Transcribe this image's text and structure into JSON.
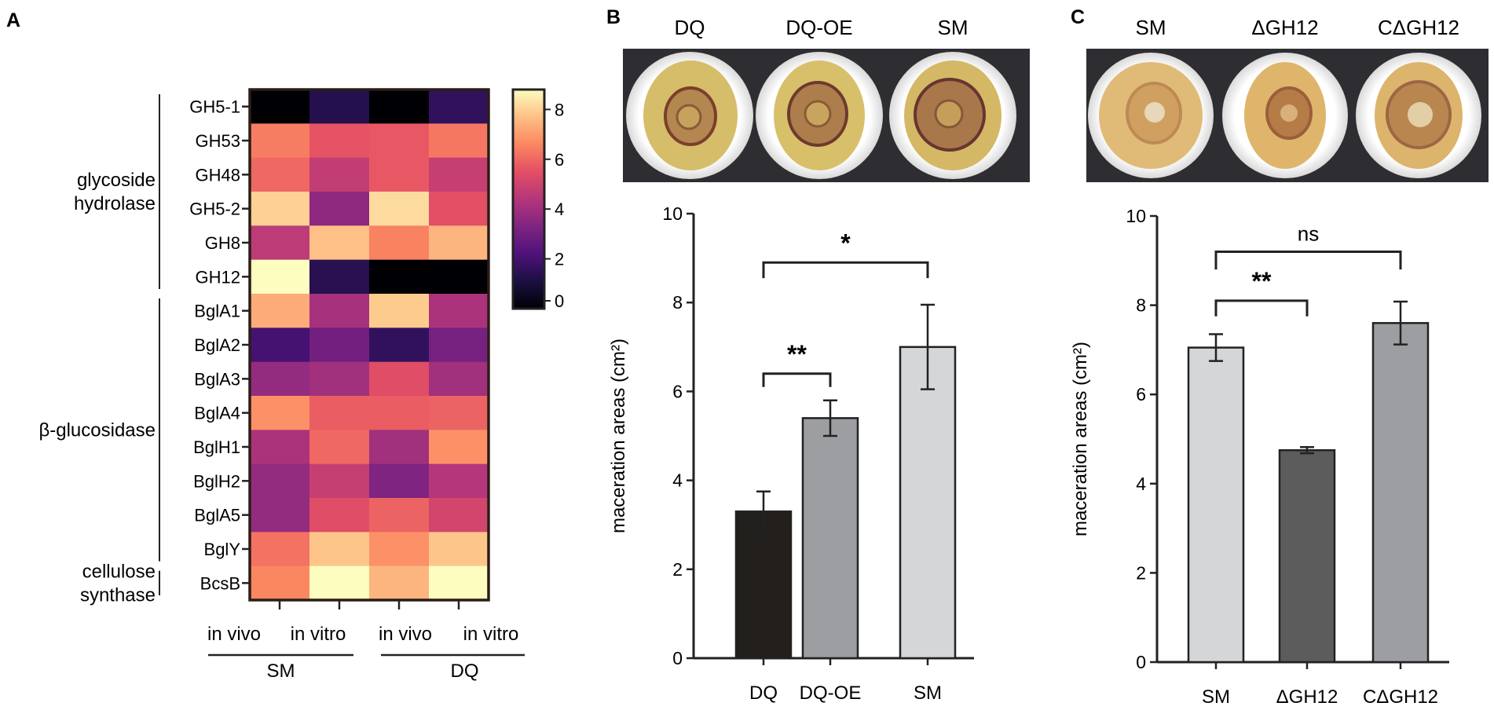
{
  "panels": {
    "A": {
      "label": "A",
      "chart_data": {
        "type": "heatmap",
        "rows": [
          "GH5-1",
          "GH53",
          "GH48",
          "GH5-2",
          "GH8",
          "GH12",
          "BglA1",
          "BglA2",
          "BglA3",
          "BglA4",
          "BglH1",
          "BglH2",
          "BglA5",
          "BglY",
          "BcsB"
        ],
        "columns": [
          "in vivo",
          "in vitro",
          "in vivo",
          "in vitro"
        ],
        "column_groups": [
          {
            "name": "SM",
            "span": [
              0,
              1
            ]
          },
          {
            "name": "DQ",
            "span": [
              2,
              3
            ]
          }
        ],
        "row_groups": [
          {
            "name_lines": [
              "glycoside",
              "hydrolase"
            ],
            "span": [
              0,
              5
            ]
          },
          {
            "name_lines": [
              "β-glucosidase"
            ],
            "span": [
              6,
              13
            ]
          },
          {
            "name_lines": [
              "cellulose",
              "synthase"
            ],
            "span": [
              14,
              14
            ]
          }
        ],
        "values": [
          [
            0.0,
            1.3,
            0.0,
            1.6
          ],
          [
            6.4,
            5.6,
            5.7,
            6.3
          ],
          [
            6.0,
            4.7,
            5.7,
            4.8
          ],
          [
            8.0,
            3.6,
            8.2,
            5.5
          ],
          [
            4.6,
            7.7,
            6.5,
            7.5
          ],
          [
            8.8,
            1.4,
            0.0,
            0.0
          ],
          [
            7.3,
            4.1,
            7.9,
            4.2
          ],
          [
            2.0,
            3.0,
            1.6,
            3.1
          ],
          [
            3.7,
            4.0,
            5.4,
            4.0
          ],
          [
            6.8,
            5.8,
            5.8,
            5.9
          ],
          [
            4.2,
            6.0,
            4.0,
            6.8
          ],
          [
            3.7,
            4.8,
            3.3,
            4.4
          ],
          [
            3.7,
            5.4,
            5.9,
            5.1
          ],
          [
            6.2,
            7.8,
            6.8,
            7.8
          ],
          [
            6.6,
            8.8,
            7.5,
            8.8
          ]
        ],
        "colorbar": {
          "min": 0,
          "max": 8.8,
          "ticks": [
            0,
            2,
            4,
            6,
            8
          ],
          "colormap": "magma"
        }
      }
    },
    "B": {
      "label": "B",
      "photo_labels": [
        "DQ",
        "DQ-OE",
        "SM"
      ],
      "chart_data": {
        "type": "bar",
        "categories": [
          "DQ",
          "DQ-OE",
          "SM"
        ],
        "values": [
          3.3,
          5.4,
          7.0
        ],
        "errors": [
          0.45,
          0.4,
          0.95
        ],
        "bar_colors": [
          "#231f1c",
          "#9c9ea2",
          "#d5d6d8"
        ],
        "ylabel": "maceration areas (cm²)",
        "ylim": [
          0,
          10
        ],
        "yticks": [
          0,
          2,
          4,
          6,
          8,
          10
        ],
        "significance": [
          {
            "from": 0,
            "to": 2,
            "label": "*",
            "y": 8.9,
            "drop": 0.35
          },
          {
            "from": 0,
            "to": 1,
            "label": "**",
            "y": 6.4,
            "drop": 0.3
          }
        ]
      }
    },
    "C": {
      "label": "C",
      "photo_labels": [
        "SM",
        "ΔGH12",
        "CΔGH12"
      ],
      "chart_data": {
        "type": "bar",
        "categories": [
          "SM",
          "ΔGH12",
          "CΔGH12"
        ],
        "values": [
          7.05,
          4.75,
          7.6
        ],
        "errors": [
          0.3,
          0.07,
          0.48
        ],
        "bar_colors": [
          "#d5d6d8",
          "#5c5c5c",
          "#9c9ea2"
        ],
        "ylabel": "maceration areas (cm²)",
        "ylim": [
          0,
          10
        ],
        "yticks": [
          0,
          2,
          4,
          6,
          8,
          10
        ],
        "significance": [
          {
            "from": 0,
            "to": 2,
            "label": "ns",
            "y": 9.2,
            "drop": 0.4
          },
          {
            "from": 0,
            "to": 1,
            "label": "**",
            "y": 8.1,
            "drop": 0.35
          }
        ]
      }
    }
  }
}
